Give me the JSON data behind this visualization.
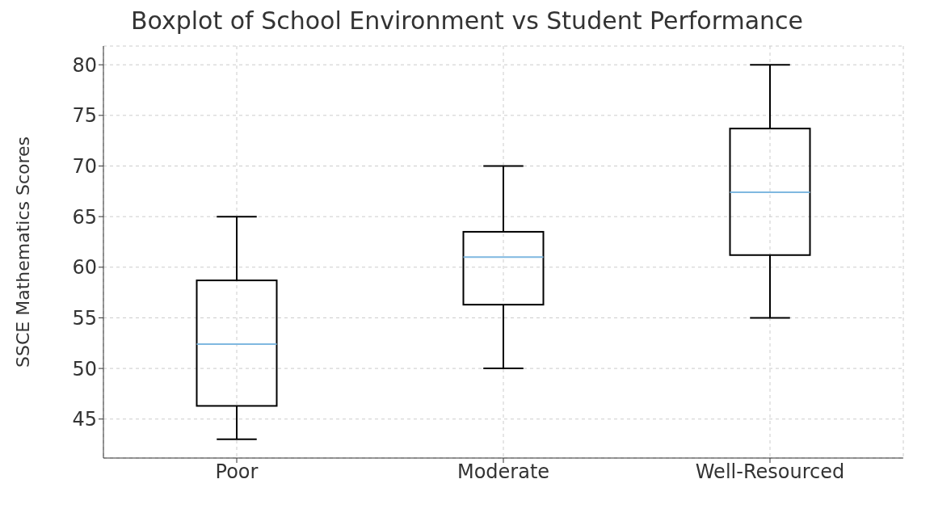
{
  "chart_data": {
    "type": "box",
    "title": "Boxplot of School Environment vs Student Performance",
    "ylabel": "SSCE Mathematics Scores",
    "categories": [
      "Poor",
      "Moderate",
      "Well-Resourced"
    ],
    "boxes": [
      {
        "low": 43,
        "q1": 46.3,
        "median": 52.4,
        "q3": 58.7,
        "high": 65
      },
      {
        "low": 50,
        "q1": 56.3,
        "median": 61.0,
        "q3": 63.5,
        "high": 70
      },
      {
        "low": 55,
        "q1": 61.2,
        "median": 67.4,
        "q3": 73.7,
        "high": 80
      }
    ],
    "color": "#000000",
    "ylim": [
      41.15,
      81.85
    ],
    "yticks": [
      45,
      50,
      55,
      60,
      65,
      70,
      75,
      80
    ],
    "grid": true
  }
}
